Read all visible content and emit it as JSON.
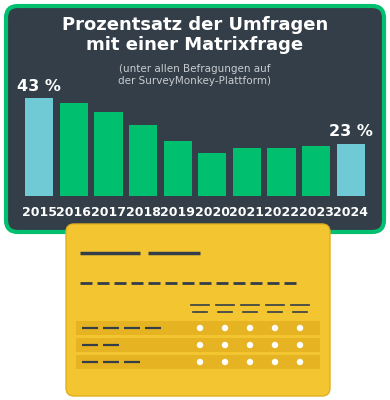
{
  "chart_data": {
    "type": "bar",
    "title": "Prozentsatz der Umfragen mit einer Matrixfrage",
    "subtitle": "(unter allen Befragungen auf der SurveyMonkey-Plattform)",
    "categories": [
      "2015",
      "2016",
      "2017",
      "2018",
      "2019",
      "2020",
      "2021",
      "2022",
      "2023",
      "2024"
    ],
    "values": [
      43,
      41,
      37,
      31,
      24,
      19,
      21,
      21,
      22,
      23
    ],
    "value_labels": [
      "43 %",
      null,
      null,
      null,
      null,
      null,
      null,
      null,
      null,
      "23 %"
    ],
    "colors": [
      "#6fcad6",
      "#00bf6f",
      "#00bf6f",
      "#00bf6f",
      "#00bf6f",
      "#00bf6f",
      "#00bf6f",
      "#00bf6f",
      "#00bf6f",
      "#6fcad6"
    ],
    "ylim": [
      0,
      43
    ],
    "data_labels": true,
    "tick_labels": "x"
  }
}
